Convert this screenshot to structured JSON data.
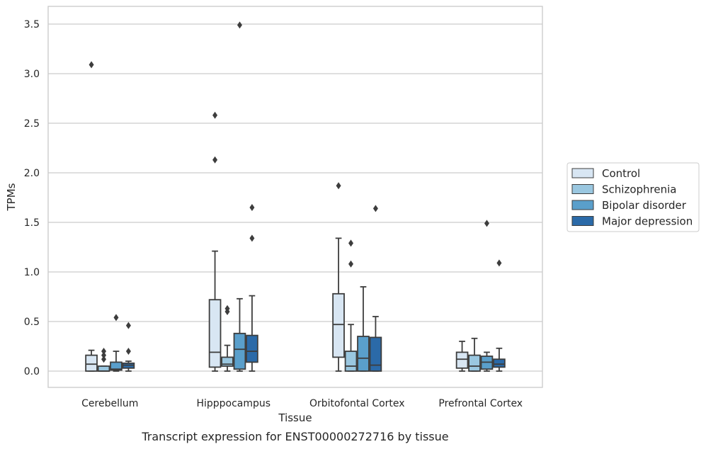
{
  "chart_data": {
    "type": "box",
    "caption": "Transcript expression for ENST00000272716 by tissue",
    "xlabel": "Tissue",
    "ylabel": "TPMs",
    "ylim": [
      -0.17,
      3.68
    ],
    "yticks": [
      "0.0",
      "0.5",
      "1.0",
      "1.5",
      "2.0",
      "2.5",
      "3.0",
      "3.5"
    ],
    "grid": true,
    "legend_position": "right",
    "categories": [
      "Cerebellum",
      "Hipppocampus",
      "Orbitofontal Cortex",
      "Prefrontal Cortex"
    ],
    "series": [
      {
        "name": "Control",
        "color": "#d8e6f3",
        "boxes": [
          {
            "whisker_low": 0.0,
            "q1": 0.0,
            "median": 0.07,
            "q3": 0.16,
            "whisker_high": 0.21,
            "outliers": [
              3.09
            ]
          },
          {
            "whisker_low": 0.0,
            "q1": 0.04,
            "median": 0.19,
            "q3": 0.72,
            "whisker_high": 1.21,
            "outliers": [
              2.13,
              2.58
            ]
          },
          {
            "whisker_low": 0.0,
            "q1": 0.14,
            "median": 0.47,
            "q3": 0.78,
            "whisker_high": 1.34,
            "outliers": [
              1.87
            ]
          },
          {
            "whisker_low": 0.0,
            "q1": 0.03,
            "median": 0.12,
            "q3": 0.19,
            "whisker_high": 0.3,
            "outliers": []
          }
        ]
      },
      {
        "name": "Schizophrenia",
        "color": "#9ac7e0",
        "boxes": [
          {
            "whisker_low": 0.0,
            "q1": 0.0,
            "median": 0.0,
            "q3": 0.05,
            "whisker_high": 0.05,
            "outliers": [
              0.12,
              0.16,
              0.2
            ]
          },
          {
            "whisker_low": 0.0,
            "q1": 0.05,
            "median": 0.07,
            "q3": 0.14,
            "whisker_high": 0.26,
            "outliers": [
              0.6,
              0.63
            ]
          },
          {
            "whisker_low": 0.0,
            "q1": 0.0,
            "median": 0.05,
            "q3": 0.2,
            "whisker_high": 0.47,
            "outliers": [
              1.08,
              1.29
            ]
          },
          {
            "whisker_low": 0.0,
            "q1": 0.0,
            "median": 0.05,
            "q3": 0.16,
            "whisker_high": 0.33,
            "outliers": []
          }
        ]
      },
      {
        "name": "Bipolar disorder",
        "color": "#5a9fcb",
        "boxes": [
          {
            "whisker_low": 0.0,
            "q1": 0.01,
            "median": 0.02,
            "q3": 0.09,
            "whisker_high": 0.2,
            "outliers": [
              0.54
            ]
          },
          {
            "whisker_low": 0.0,
            "q1": 0.02,
            "median": 0.22,
            "q3": 0.38,
            "whisker_high": 0.73,
            "outliers": [
              3.49
            ]
          },
          {
            "whisker_low": 0.0,
            "q1": 0.0,
            "median": 0.13,
            "q3": 0.35,
            "whisker_high": 0.85,
            "outliers": []
          },
          {
            "whisker_low": 0.0,
            "q1": 0.02,
            "median": 0.09,
            "q3": 0.15,
            "whisker_high": 0.19,
            "outliers": [
              1.49
            ]
          }
        ]
      },
      {
        "name": "Major depression",
        "color": "#2b6aa8",
        "boxes": [
          {
            "whisker_low": 0.0,
            "q1": 0.03,
            "median": 0.06,
            "q3": 0.08,
            "whisker_high": 0.1,
            "outliers": [
              0.2,
              0.46
            ]
          },
          {
            "whisker_low": 0.0,
            "q1": 0.09,
            "median": 0.2,
            "q3": 0.36,
            "whisker_high": 0.76,
            "outliers": [
              1.34,
              1.65
            ]
          },
          {
            "whisker_low": 0.0,
            "q1": 0.0,
            "median": 0.06,
            "q3": 0.34,
            "whisker_high": 0.55,
            "outliers": [
              1.64
            ]
          },
          {
            "whisker_low": 0.0,
            "q1": 0.04,
            "median": 0.07,
            "q3": 0.12,
            "whisker_high": 0.23,
            "outliers": [
              1.09
            ]
          }
        ]
      }
    ]
  }
}
